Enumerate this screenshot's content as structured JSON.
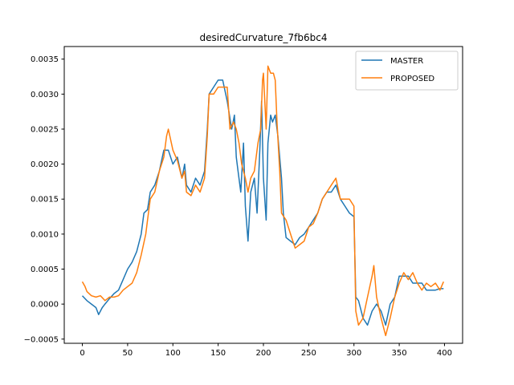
{
  "chart_data": {
    "type": "line",
    "title": "desiredCurvature_7fb6bc4",
    "xlabel": "",
    "ylabel": "",
    "xlim": [
      -20,
      420
    ],
    "ylim": [
      -0.00056,
      0.00368
    ],
    "xticks": [
      0,
      50,
      100,
      150,
      200,
      250,
      300,
      350,
      400
    ],
    "xtick_labels": [
      "0",
      "50",
      "100",
      "150",
      "200",
      "250",
      "300",
      "350",
      "400"
    ],
    "yticks": [
      -0.0005,
      0.0,
      0.0005,
      0.001,
      0.0015,
      0.002,
      0.0025,
      0.003,
      0.0035
    ],
    "ytick_labels": [
      "−0.0005",
      "0.0000",
      "0.0005",
      "0.0010",
      "0.0015",
      "0.0020",
      "0.0025",
      "0.0030",
      "0.0035"
    ],
    "grid": false,
    "legend_position": "top-right",
    "series": [
      {
        "name": "MASTER",
        "color": "#1f77b4",
        "points": [
          [
            0,
            0.00012
          ],
          [
            5,
            5e-05
          ],
          [
            10,
            0.0
          ],
          [
            15,
            -5e-05
          ],
          [
            18,
            -0.00015
          ],
          [
            22,
            -5e-05
          ],
          [
            25,
            0.0
          ],
          [
            30,
            8e-05
          ],
          [
            35,
            0.00015
          ],
          [
            40,
            0.0002
          ],
          [
            45,
            0.00035
          ],
          [
            50,
            0.0005
          ],
          [
            55,
            0.0006
          ],
          [
            60,
            0.00075
          ],
          [
            65,
            0.001
          ],
          [
            68,
            0.0013
          ],
          [
            72,
            0.00135
          ],
          [
            75,
            0.0016
          ],
          [
            80,
            0.0017
          ],
          [
            85,
            0.0019
          ],
          [
            90,
            0.0022
          ],
          [
            95,
            0.0022
          ],
          [
            100,
            0.002
          ],
          [
            105,
            0.0021
          ],
          [
            110,
            0.0018
          ],
          [
            113,
            0.002
          ],
          [
            115,
            0.0017
          ],
          [
            120,
            0.0016
          ],
          [
            125,
            0.0018
          ],
          [
            130,
            0.0017
          ],
          [
            135,
            0.0019
          ],
          [
            138,
            0.0025
          ],
          [
            140,
            0.003
          ],
          [
            145,
            0.0031
          ],
          [
            150,
            0.0032
          ],
          [
            155,
            0.0032
          ],
          [
            160,
            0.0029
          ],
          [
            165,
            0.0025
          ],
          [
            168,
            0.0027
          ],
          [
            170,
            0.0021
          ],
          [
            172,
            0.0019
          ],
          [
            175,
            0.0016
          ],
          [
            178,
            0.0023
          ],
          [
            180,
            0.0014
          ],
          [
            183,
            0.0009
          ],
          [
            186,
            0.0016
          ],
          [
            190,
            0.0018
          ],
          [
            193,
            0.0013
          ],
          [
            196,
            0.0022
          ],
          [
            198,
            0.0029
          ],
          [
            200,
            0.0018
          ],
          [
            203,
            0.0012
          ],
          [
            205,
            0.0023
          ],
          [
            208,
            0.0027
          ],
          [
            210,
            0.0026
          ],
          [
            213,
            0.0027
          ],
          [
            216,
            0.0024
          ],
          [
            220,
            0.0018
          ],
          [
            222,
            0.0013
          ],
          [
            225,
            0.00095
          ],
          [
            230,
            0.0009
          ],
          [
            235,
            0.00085
          ],
          [
            240,
            0.00095
          ],
          [
            245,
            0.001
          ],
          [
            250,
            0.0011
          ],
          [
            255,
            0.0012
          ],
          [
            260,
            0.0013
          ],
          [
            265,
            0.0015
          ],
          [
            270,
            0.0016
          ],
          [
            275,
            0.0016
          ],
          [
            280,
            0.0017
          ],
          [
            285,
            0.0015
          ],
          [
            290,
            0.0014
          ],
          [
            295,
            0.0013
          ],
          [
            300,
            0.00125
          ],
          [
            302,
            0.0001
          ],
          [
            305,
            5e-05
          ],
          [
            310,
            -0.0002
          ],
          [
            315,
            -0.0003
          ],
          [
            320,
            -0.0001
          ],
          [
            325,
            0.0
          ],
          [
            330,
            -0.0001
          ],
          [
            335,
            -0.0003
          ],
          [
            340,
            0.0
          ],
          [
            345,
            0.0001
          ],
          [
            350,
            0.0004
          ],
          [
            355,
            0.0004
          ],
          [
            360,
            0.0004
          ],
          [
            365,
            0.0003
          ],
          [
            370,
            0.0003
          ],
          [
            375,
            0.0003
          ],
          [
            380,
            0.0002
          ],
          [
            385,
            0.0002
          ],
          [
            390,
            0.0002
          ],
          [
            395,
            0.00022
          ],
          [
            399,
            0.00022
          ]
        ]
      },
      {
        "name": "PROPOSED",
        "color": "#ff7f0e",
        "points": [
          [
            0,
            0.00032
          ],
          [
            3,
            0.00025
          ],
          [
            5,
            0.00018
          ],
          [
            10,
            0.00012
          ],
          [
            15,
            0.0001
          ],
          [
            20,
            0.00012
          ],
          [
            25,
            5e-05
          ],
          [
            30,
            0.0001
          ],
          [
            35,
            0.0001
          ],
          [
            40,
            0.00012
          ],
          [
            45,
            0.0002
          ],
          [
            50,
            0.00025
          ],
          [
            55,
            0.0003
          ],
          [
            60,
            0.00045
          ],
          [
            65,
            0.0007
          ],
          [
            70,
            0.001
          ],
          [
            72,
            0.0012
          ],
          [
            75,
            0.0015
          ],
          [
            80,
            0.0016
          ],
          [
            85,
            0.0019
          ],
          [
            90,
            0.0021
          ],
          [
            93,
            0.0024
          ],
          [
            95,
            0.0025
          ],
          [
            100,
            0.0022
          ],
          [
            105,
            0.00205
          ],
          [
            110,
            0.0018
          ],
          [
            113,
            0.0019
          ],
          [
            115,
            0.0016
          ],
          [
            120,
            0.00155
          ],
          [
            125,
            0.0017
          ],
          [
            130,
            0.0016
          ],
          [
            135,
            0.0018
          ],
          [
            138,
            0.0024
          ],
          [
            140,
            0.003
          ],
          [
            145,
            0.003
          ],
          [
            150,
            0.0031
          ],
          [
            155,
            0.0031
          ],
          [
            160,
            0.0031
          ],
          [
            163,
            0.0025
          ],
          [
            167,
            0.0026
          ],
          [
            170,
            0.0025
          ],
          [
            173,
            0.0023
          ],
          [
            176,
            0.002
          ],
          [
            180,
            0.0018
          ],
          [
            183,
            0.0016
          ],
          [
            186,
            0.0018
          ],
          [
            190,
            0.0019
          ],
          [
            194,
            0.0023
          ],
          [
            197,
            0.0025
          ],
          [
            199,
            0.0032
          ],
          [
            200,
            0.0033
          ],
          [
            203,
            0.0025
          ],
          [
            205,
            0.0034
          ],
          [
            208,
            0.0033
          ],
          [
            211,
            0.0033
          ],
          [
            213,
            0.0032
          ],
          [
            215,
            0.0026
          ],
          [
            218,
            0.0019
          ],
          [
            220,
            0.0013
          ],
          [
            225,
            0.0012
          ],
          [
            230,
            0.001
          ],
          [
            235,
            0.0008
          ],
          [
            240,
            0.00085
          ],
          [
            245,
            0.0009
          ],
          [
            250,
            0.0011
          ],
          [
            255,
            0.00115
          ],
          [
            260,
            0.0013
          ],
          [
            265,
            0.0015
          ],
          [
            270,
            0.0016
          ],
          [
            275,
            0.0017
          ],
          [
            280,
            0.0018
          ],
          [
            285,
            0.0015
          ],
          [
            290,
            0.0015
          ],
          [
            295,
            0.0015
          ],
          [
            300,
            0.0014
          ],
          [
            302,
            -0.0001
          ],
          [
            305,
            -0.0003
          ],
          [
            310,
            -0.0002
          ],
          [
            315,
            0.0001
          ],
          [
            320,
            0.0004
          ],
          [
            322,
            0.00055
          ],
          [
            325,
            0.0001
          ],
          [
            330,
            -0.0002
          ],
          [
            335,
            -0.00045
          ],
          [
            340,
            -0.0002
          ],
          [
            345,
            0.0001
          ],
          [
            350,
            0.0003
          ],
          [
            355,
            0.00045
          ],
          [
            360,
            0.00035
          ],
          [
            365,
            0.00045
          ],
          [
            370,
            0.0003
          ],
          [
            375,
            0.0002
          ],
          [
            380,
            0.0003
          ],
          [
            385,
            0.00025
          ],
          [
            390,
            0.0003
          ],
          [
            395,
            0.0002
          ],
          [
            399,
            0.00032
          ]
        ]
      }
    ]
  }
}
